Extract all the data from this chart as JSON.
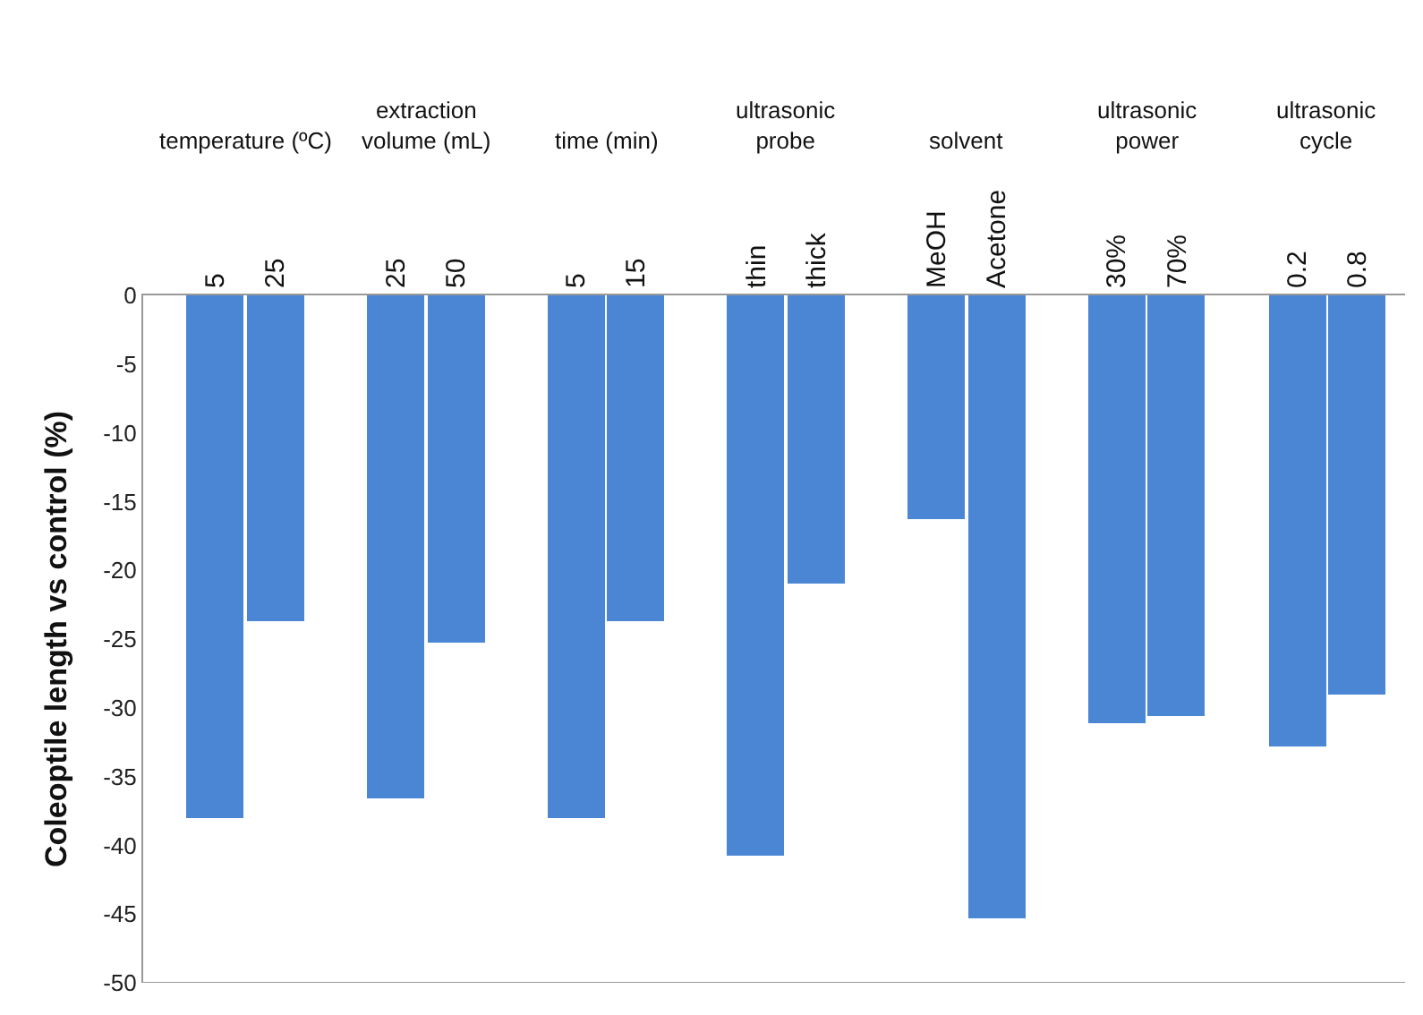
{
  "chart_data": {
    "type": "bar",
    "ylabel": "Coleoptile length vs control (%)",
    "categories": [
      "5",
      "25",
      "25",
      "50",
      "5",
      "15",
      "thin",
      "thick",
      "MeOH",
      "Acetone",
      "30%",
      "70%",
      "0.2",
      "0.8"
    ],
    "values": [
      -38.0,
      -23.7,
      -36.6,
      -25.2,
      -38.0,
      -23.7,
      -40.7,
      -20.9,
      -16.3,
      -45.3,
      -31.1,
      -30.6,
      -32.8,
      -29.1
    ],
    "color": "#4a86d4",
    "ylim": [
      -50,
      0
    ],
    "yticks": [
      -50,
      -45,
      -40,
      -35,
      -30,
      -25,
      -20,
      -15,
      -10,
      -5,
      0
    ],
    "annotations": [
      "temperature (ºC)",
      "extraction\nvolume (mL)",
      "time (min)",
      "ultrasonic\nprobe",
      "solvent",
      "ultrasonic\npower",
      "ultrasonic\ncycle"
    ]
  }
}
